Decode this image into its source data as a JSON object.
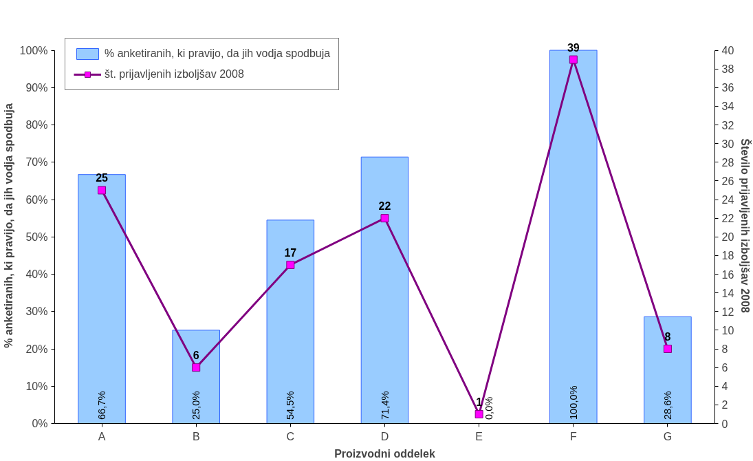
{
  "chart_data": {
    "type": "bar",
    "xlabel": "Proizvodni oddelek",
    "ylabel": "% anketiranih, ki pravijo, da jih vodja spodbuja",
    "y2label": "Število prijavljenih izboljšav 2008",
    "categories": [
      "A",
      "B",
      "C",
      "D",
      "E",
      "F",
      "G"
    ],
    "series": [
      {
        "name": "% anketiranih, ki pravijo, da jih vodja spodbuja",
        "color": "#99ccff",
        "values": [
          66.7,
          25.0,
          54.5,
          71.4,
          0.0,
          100.0,
          28.6
        ],
        "value_labels": [
          "66,7%",
          "25,0%",
          "54,5%",
          "71,4%",
          "0,0%",
          "100,0%",
          "28,6%"
        ]
      },
      {
        "name": "št. prijavljenih izboljšav 2008",
        "type": "line",
        "axis": "y2",
        "color": "#800080",
        "marker": "square",
        "values": [
          25,
          6,
          17,
          22,
          1,
          39,
          8
        ],
        "value_labels": [
          "25",
          "6",
          "17",
          "22",
          "1",
          "39",
          "8"
        ]
      }
    ],
    "ylim": [
      0,
      100
    ],
    "yticks": [
      {
        "value": 0,
        "label": "0%"
      },
      {
        "value": 10,
        "label": "10%"
      },
      {
        "value": 20,
        "label": "20%"
      },
      {
        "value": 30,
        "label": "30%"
      },
      {
        "value": 40,
        "label": "40%"
      },
      {
        "value": 50,
        "label": "50%"
      },
      {
        "value": 60,
        "label": "60%"
      },
      {
        "value": 70,
        "label": "70%"
      },
      {
        "value": 80,
        "label": "80%"
      },
      {
        "value": 90,
        "label": "90%"
      },
      {
        "value": 100,
        "label": "100%"
      }
    ],
    "y2lim": [
      0,
      40
    ],
    "y2ticks": [
      0,
      2,
      4,
      6,
      8,
      10,
      12,
      14,
      16,
      18,
      20,
      22,
      24,
      26,
      28,
      30,
      32,
      34,
      36,
      38,
      40
    ],
    "grid": false,
    "legend": "top left"
  }
}
